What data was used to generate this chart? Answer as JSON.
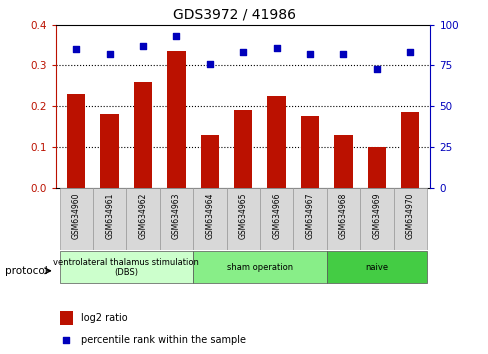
{
  "title": "GDS3972 / 41986",
  "samples": [
    "GSM634960",
    "GSM634961",
    "GSM634962",
    "GSM634963",
    "GSM634964",
    "GSM634965",
    "GSM634966",
    "GSM634967",
    "GSM634968",
    "GSM634969",
    "GSM634970"
  ],
  "log2_ratio": [
    0.23,
    0.18,
    0.26,
    0.335,
    0.13,
    0.19,
    0.225,
    0.175,
    0.13,
    0.1,
    0.185
  ],
  "percentile_rank": [
    85,
    82,
    87,
    93,
    76,
    83,
    86,
    82,
    82,
    73,
    83
  ],
  "groups": [
    {
      "label": "ventrolateral thalamus stimulation\n(DBS)",
      "start": 0,
      "end": 3,
      "color": "#ccffcc"
    },
    {
      "label": "sham operation",
      "start": 4,
      "end": 7,
      "color": "#88ee88"
    },
    {
      "label": "naive",
      "start": 8,
      "end": 10,
      "color": "#44cc44"
    }
  ],
  "bar_color": "#bb1100",
  "dot_color": "#0000bb",
  "ylim_left": [
    0,
    0.4
  ],
  "ylim_right": [
    0,
    100
  ],
  "yticks_left": [
    0,
    0.1,
    0.2,
    0.3,
    0.4
  ],
  "yticks_right": [
    0,
    25,
    50,
    75,
    100
  ],
  "legend_bar_label": "log2 ratio",
  "legend_dot_label": "percentile rank within the sample",
  "protocol_label": "protocol"
}
